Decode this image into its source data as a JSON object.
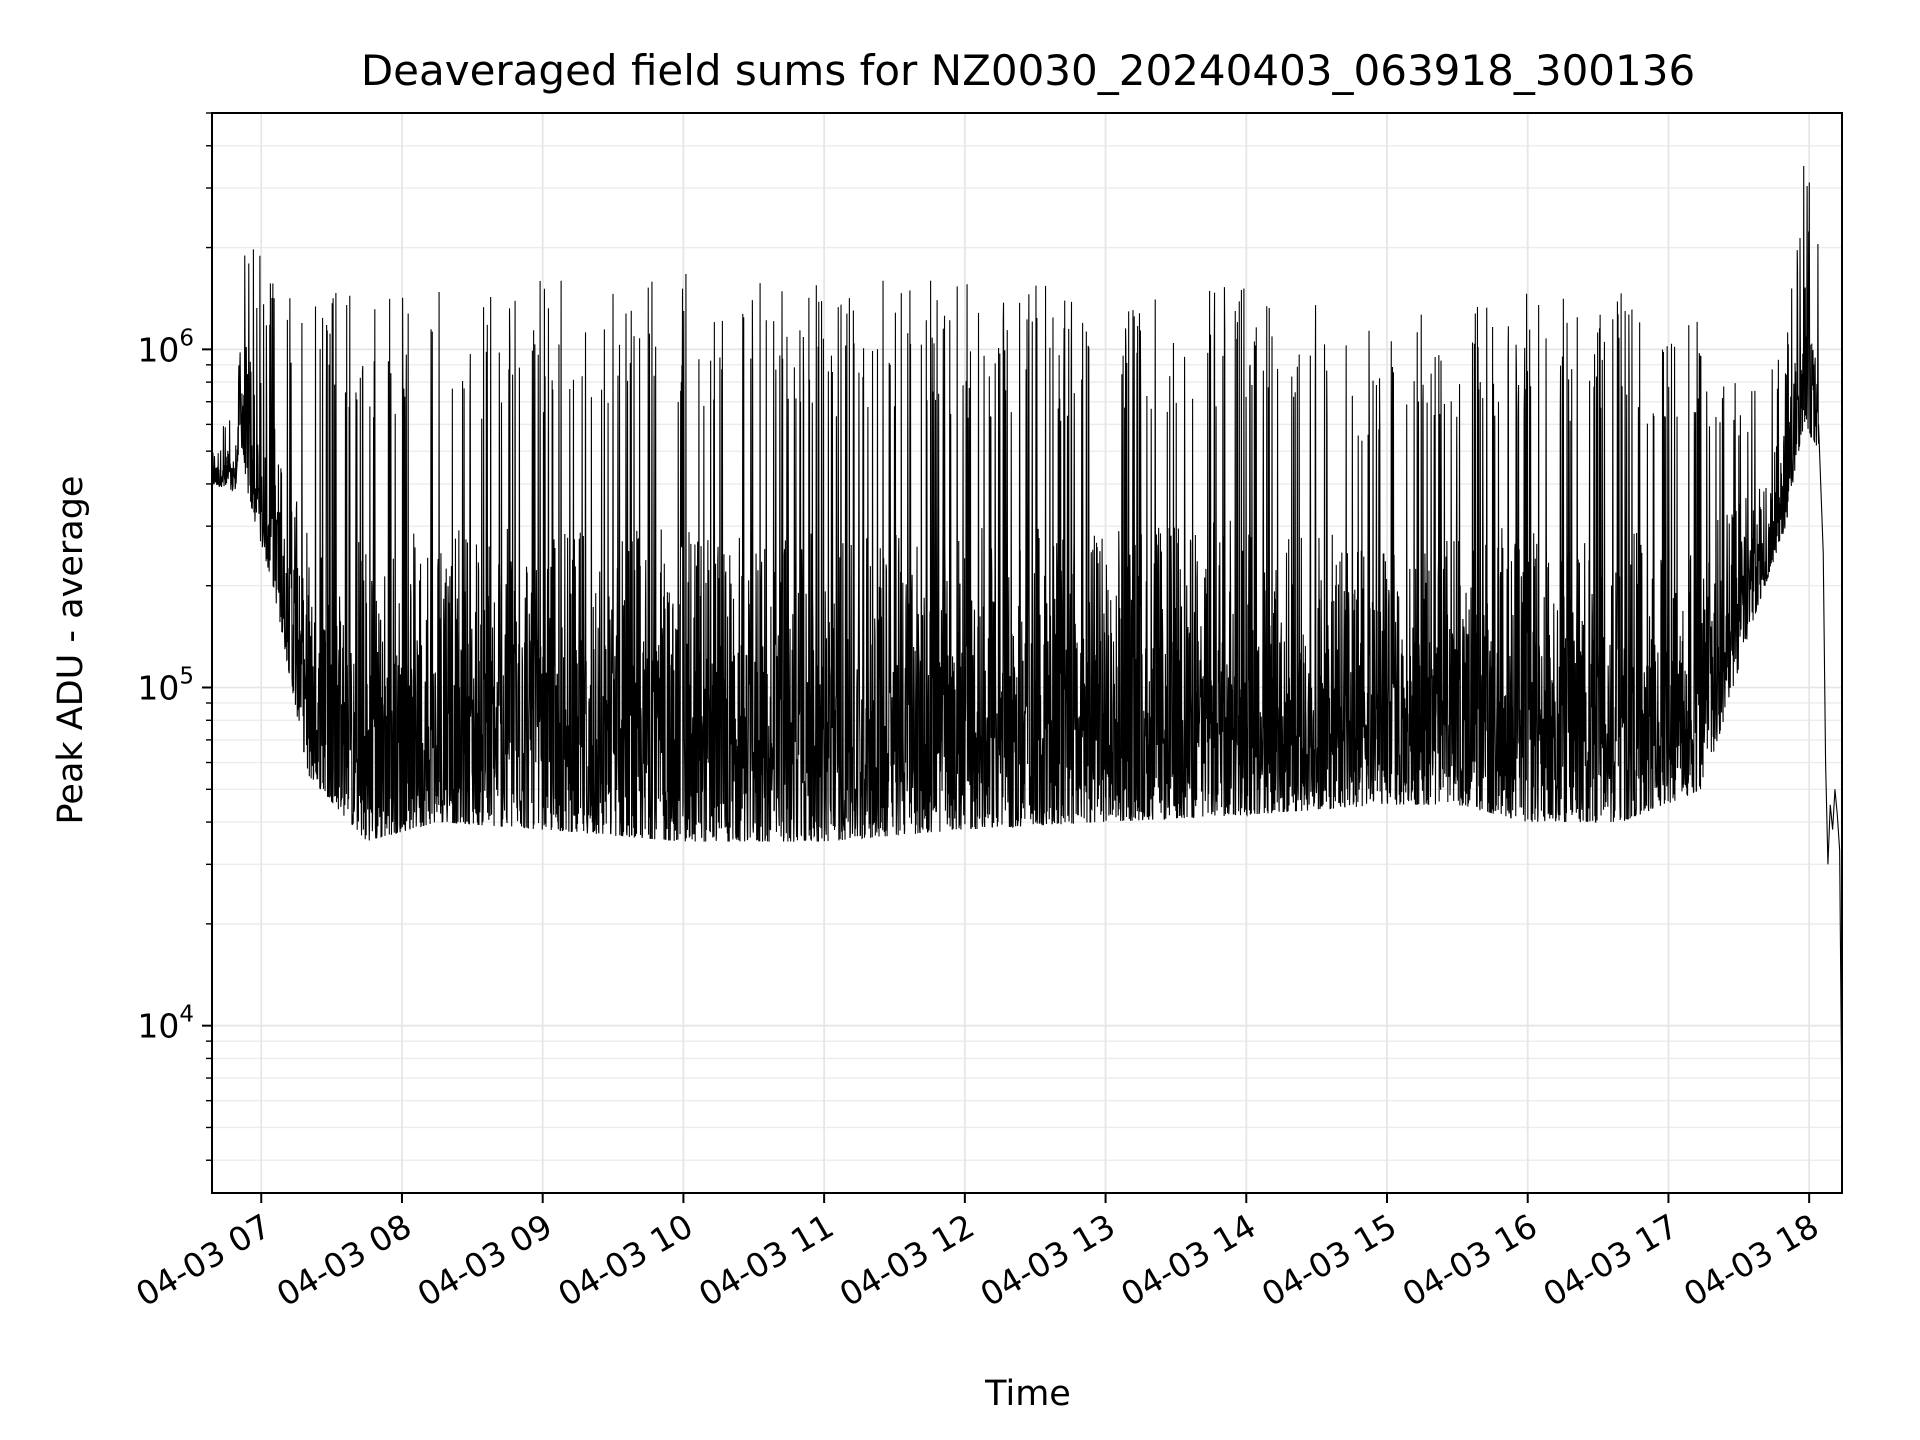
{
  "chart_data": {
    "type": "line",
    "title": "Deaveraged field sums for NZ0030_20240403_063918_300136",
    "xlabel": "Time",
    "ylabel": "Peak ADU - average",
    "yscale": "log",
    "ylim": [
      3200,
      5000000
    ],
    "xlim": [
      "2024-04-03 06:39",
      "2024-04-03 18:14"
    ],
    "grid": true,
    "line_color": "#000000",
    "x_ticks": [
      {
        "value": "2024-04-03 07:00",
        "label": "04-03 07"
      },
      {
        "value": "2024-04-03 08:00",
        "label": "04-03 08"
      },
      {
        "value": "2024-04-03 09:00",
        "label": "04-03 09"
      },
      {
        "value": "2024-04-03 10:00",
        "label": "04-03 10"
      },
      {
        "value": "2024-04-03 11:00",
        "label": "04-03 11"
      },
      {
        "value": "2024-04-03 12:00",
        "label": "04-03 12"
      },
      {
        "value": "2024-04-03 13:00",
        "label": "04-03 13"
      },
      {
        "value": "2024-04-03 14:00",
        "label": "04-03 14"
      },
      {
        "value": "2024-04-03 15:00",
        "label": "04-03 15"
      },
      {
        "value": "2024-04-03 16:00",
        "label": "04-03 16"
      },
      {
        "value": "2024-04-03 17:00",
        "label": "04-03 17"
      },
      {
        "value": "2024-04-03 18:00",
        "label": "04-03 18"
      }
    ],
    "y_ticks": [
      {
        "value": 10000,
        "base": "10",
        "exp": "4"
      },
      {
        "value": 100000,
        "base": "10",
        "exp": "5"
      },
      {
        "value": 1000000,
        "base": "10",
        "exp": "6"
      }
    ],
    "series": [
      {
        "name": "",
        "envelope": [
          {
            "x": "2024-04-03 06:39",
            "low": 400000,
            "high": 620000
          },
          {
            "x": "2024-04-03 06:49",
            "low": 380000,
            "high": 650000
          },
          {
            "x": "2024-04-03 06:51",
            "low": 550000,
            "high": 2000000
          },
          {
            "x": "2024-04-03 06:55",
            "low": 350000,
            "high": 2500000
          },
          {
            "x": "2024-04-03 07:05",
            "low": 200000,
            "high": 1600000
          },
          {
            "x": "2024-04-03 07:20",
            "low": 55000,
            "high": 1500000
          },
          {
            "x": "2024-04-03 07:45",
            "low": 35000,
            "high": 1500000
          },
          {
            "x": "2024-04-03 08:15",
            "low": 40000,
            "high": 1500000
          },
          {
            "x": "2024-04-03 09:00",
            "low": 38000,
            "high": 1600000
          },
          {
            "x": "2024-04-03 10:00",
            "low": 35000,
            "high": 1700000
          },
          {
            "x": "2024-04-03 11:00",
            "low": 35000,
            "high": 1600000
          },
          {
            "x": "2024-04-03 12:00",
            "low": 38000,
            "high": 1600000
          },
          {
            "x": "2024-04-03 13:00",
            "low": 40000,
            "high": 1500000
          },
          {
            "x": "2024-04-03 14:00",
            "low": 42000,
            "high": 1700000
          },
          {
            "x": "2024-04-03 15:00",
            "low": 45000,
            "high": 1100000
          },
          {
            "x": "2024-04-03 15:30",
            "low": 45000,
            "high": 1500000
          },
          {
            "x": "2024-04-03 16:00",
            "low": 40000,
            "high": 1500000
          },
          {
            "x": "2024-04-03 16:40",
            "low": 40000,
            "high": 1500000
          },
          {
            "x": "2024-04-03 17:15",
            "low": 50000,
            "high": 1300000
          },
          {
            "x": "2024-04-03 17:35",
            "low": 150000,
            "high": 800000
          },
          {
            "x": "2024-04-03 17:50",
            "low": 300000,
            "high": 1000000
          },
          {
            "x": "2024-04-03 17:58",
            "low": 600000,
            "high": 3800000
          },
          {
            "x": "2024-04-03 18:04",
            "low": 500000,
            "high": 2700000
          }
        ],
        "tail": [
          {
            "x": "2024-04-03 18:04",
            "y": 600000
          },
          {
            "x": "2024-04-03 18:06",
            "y": 250000
          },
          {
            "x": "2024-04-03 18:07",
            "y": 60000
          },
          {
            "x": "2024-04-03 18:08",
            "y": 30000
          },
          {
            "x": "2024-04-03 18:09",
            "y": 45000
          },
          {
            "x": "2024-04-03 18:10",
            "y": 38000
          },
          {
            "x": "2024-04-03 18:11",
            "y": 50000
          },
          {
            "x": "2024-04-03 18:12",
            "y": 42000
          },
          {
            "x": "2024-04-03 18:13",
            "y": 33000
          },
          {
            "x": "2024-04-03 18:14",
            "y": 5000
          }
        ]
      }
    ]
  }
}
